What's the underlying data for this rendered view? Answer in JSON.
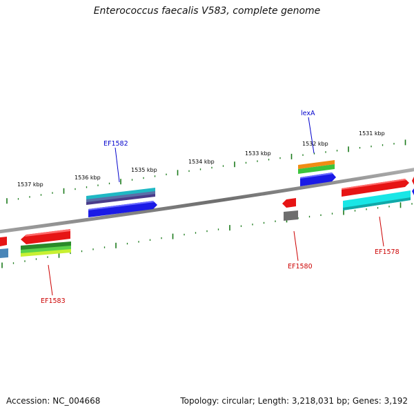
{
  "title": "Enterococcus faecalis V583, complete genome",
  "footer": {
    "accession": "Accession: NC_004668",
    "summary": "Topology: circular; Length: 3,218,031 bp; Genes: 3,192"
  },
  "colors": {
    "backbone": "#808080",
    "tick": "#1a7a1a",
    "label_blue": "#0000cc",
    "label_red": "#cc0000"
  },
  "kbp_labels": [
    "1537 kbp",
    "1536 kbp",
    "1535 kbp",
    "1534 kbp",
    "1533 kbp",
    "1532 kbp",
    "1531 kbp"
  ],
  "gene_labels": {
    "lexA": "lexA",
    "EF1582": "EF1582",
    "EF1583": "EF1583",
    "EF1580": "EF1580",
    "EF1578": "EF1578"
  }
}
